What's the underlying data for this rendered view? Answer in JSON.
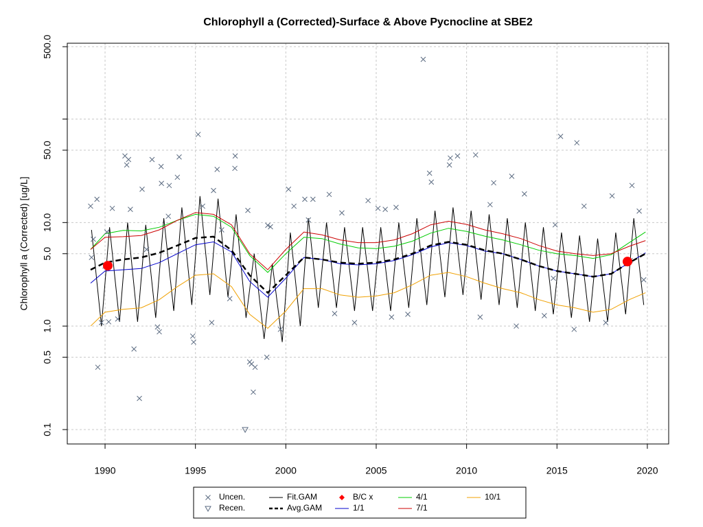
{
  "chart_data": {
    "type": "line",
    "title": "Chlorophyll a (Corrected)-Surface & Above Pycnocline at SBE2",
    "y_label": "Chlorophyll a (Corrected) [ug/L]",
    "log_y": true,
    "grid": true,
    "legend": "bottom",
    "xlim": [
      1987.91,
      2021.18
    ],
    "xticks": [
      1990,
      1995,
      2000,
      2005,
      2010,
      2015,
      2020
    ],
    "ylim": [
      0.0726,
      540
    ],
    "yticks": [
      0.1,
      0.5,
      {
        "value": 1,
        "label": "1.0"
      },
      {
        "value": 5,
        "label": "5.0"
      },
      {
        "value": 10,
        "label": "10.0"
      },
      {
        "value": 50,
        "label": "50.0"
      },
      {
        "value": 100,
        "label": null
      },
      {
        "value": 500,
        "label": "500.0"
      }
    ],
    "x": [
      1989.2,
      1990,
      1991,
      1992,
      1993,
      1994,
      1995,
      1996,
      1997,
      1998,
      1999,
      2000,
      2001,
      2002,
      2003,
      2004,
      2005,
      2006,
      2007,
      2008,
      2009,
      2010,
      2011,
      2012,
      2013,
      2014,
      2015,
      2016,
      2017,
      2018,
      2019,
      2019.9
    ],
    "series": [
      {
        "name": "Uncen.",
        "color": "#5a6a80",
        "kind": "points",
        "marker": "x",
        "x": [
          1989.2,
          1989.55,
          1989.35,
          1989.6,
          1989.25,
          1989.8,
          1990.0,
          1990.2,
          1990.1,
          1990.4,
          1990.7,
          1991.1,
          1991.3,
          1991.2,
          1991.4,
          1991.6,
          1991.9,
          1992.05,
          1992.3,
          1992.6,
          1992.9,
          1993.0,
          1993.1,
          1993.12,
          1993.55,
          1994.0,
          1994.1,
          1993.5,
          1995.15,
          1994.85,
          1994.9,
          1995.4,
          1995.9,
          1996.0,
          1996.2,
          1997.2,
          1997.18,
          1996.45,
          1996.9,
          1997.9,
          1998.0,
          1998.1,
          1998.3,
          1998.2,
          1998.95,
          1999.0,
          1999.15,
          1999.7,
          2000.15,
          2000.45,
          2001.05,
          2001.5,
          2001.25,
          2002.4,
          2003.1,
          2002.7,
          2003.8,
          2004.55,
          2005.1,
          2005.5,
          2006.1,
          2005.85,
          2006.75,
          2007.6,
          2007.95,
          2008.05,
          2009.05,
          2009.1,
          2009.5,
          2010.5,
          2010.75,
          2011.3,
          2011.5,
          2012.5,
          2012.75,
          2013.2,
          2014.3,
          2015.2,
          2014.8,
          2016.1,
          2015.95,
          2016.5,
          2017.7,
          2018.05,
          2019.15,
          2019.55,
          2019.05,
          2019.8,
          2014.9
        ],
        "values": [
          14.4,
          16.8,
          6.9,
          0.4,
          4.6,
          1.08,
          3.8,
          1.1,
          8.1,
          13.7,
          1.17,
          44,
          40.6,
          36,
          13.4,
          0.6,
          0.2,
          21,
          5.5,
          40.6,
          0.98,
          0.88,
          34.8,
          23.9,
          22.8,
          27.4,
          43,
          11.5,
          71,
          0.8,
          0.7,
          14.4,
          1.08,
          20.4,
          32.6,
          44,
          33.4,
          8.5,
          1.84,
          13.1,
          0.45,
          0.43,
          0.4,
          0.23,
          0.5,
          9.4,
          9.1,
          0.93,
          21,
          14.4,
          16.8,
          16.8,
          10.6,
          18.7,
          12.4,
          1.32,
          1.08,
          16.3,
          13.7,
          13.4,
          14,
          1.22,
          1.3,
          377,
          30,
          24.6,
          36,
          42,
          44,
          45,
          1.22,
          14.9,
          24.2,
          28,
          1.0,
          18.9,
          1.26,
          68,
          2.9,
          59,
          0.93,
          14.4,
          1.08,
          18.1,
          22.8,
          12.9,
          4.3,
          2.8,
          9.5
        ]
      },
      {
        "name": "Recen.",
        "color": "#5a6a80",
        "kind": "points",
        "marker": "triangle",
        "x": [
          1997.75
        ],
        "values": [
          0.1
        ]
      },
      {
        "name": "Fit.GAM",
        "color": "#000000",
        "kind": "line",
        "x": [
          1989.25,
          1989.8,
          1990.25,
          1990.8,
          1991.25,
          1991.8,
          1992.25,
          1992.8,
          1993.25,
          1993.8,
          1994.25,
          1994.8,
          1995.25,
          1995.8,
          1996.25,
          1996.8,
          1997.25,
          1997.8,
          1998.25,
          1998.8,
          1999.25,
          1999.8,
          2000.25,
          2000.8,
          2001.25,
          2001.8,
          2002.25,
          2002.8,
          2003.25,
          2003.8,
          2004.25,
          2004.8,
          2005.25,
          2005.8,
          2006.25,
          2006.8,
          2007.25,
          2007.8,
          2008.25,
          2008.8,
          2009.25,
          2009.8,
          2010.25,
          2010.8,
          2011.25,
          2011.8,
          2012.25,
          2012.8,
          2013.25,
          2013.8,
          2014.25,
          2014.8,
          2015.25,
          2015.8,
          2016.25,
          2016.8,
          2017.25,
          2017.8,
          2018.25,
          2018.8,
          2019.25,
          2019.8
        ],
        "values": [
          8.5,
          1.0,
          9,
          1.1,
          10,
          1.1,
          9.5,
          1.2,
          11,
          1.4,
          14,
          1.6,
          18,
          2.0,
          17,
          1.9,
          12,
          1.2,
          5,
          0.75,
          4,
          0.7,
          8,
          1.0,
          11,
          1.5,
          10,
          1.5,
          9,
          1.4,
          9,
          1.4,
          9,
          1.4,
          10,
          1.5,
          11,
          1.6,
          13,
          1.9,
          14,
          2.0,
          13,
          1.8,
          12,
          1.6,
          11,
          1.5,
          10,
          1.4,
          9,
          1.3,
          8,
          1.2,
          7.5,
          1.1,
          7,
          1.1,
          8,
          1.3,
          11,
          1.6
        ]
      },
      {
        "name": "Avg.GAM",
        "color": "#000000",
        "kind": "dashed",
        "values": [
          3.5,
          4.1,
          4.4,
          4.6,
          5.1,
          6.0,
          7.1,
          7.3,
          5.4,
          3.1,
          2.1,
          3.1,
          4.6,
          4.4,
          4.1,
          4.0,
          4.1,
          4.4,
          5.0,
          6.0,
          6.5,
          6.1,
          5.4,
          5.0,
          4.4,
          3.8,
          3.4,
          3.2,
          3.0,
          3.2,
          4.1,
          5.0
        ]
      },
      {
        "name": "B/C x",
        "color": "#ff0000",
        "kind": "points",
        "marker": "circle",
        "x": [
          1990.15,
          2018.9
        ],
        "values": [
          3.83,
          4.2
        ]
      },
      {
        "name": "1/1",
        "color": "#0000cc",
        "kind": "line",
        "values": [
          2.6,
          3.4,
          3.5,
          3.6,
          4.1,
          5.0,
          6.1,
          6.5,
          5.2,
          2.7,
          1.9,
          2.9,
          4.6,
          4.4,
          4.0,
          3.9,
          4.0,
          4.3,
          4.9,
          5.8,
          6.4,
          6.0,
          5.3,
          5.0,
          4.4,
          3.8,
          3.4,
          3.2,
          3.0,
          3.2,
          4.1,
          5.1
        ]
      },
      {
        "name": "4/1",
        "color": "#00cc00",
        "kind": "line",
        "values": [
          5.5,
          7.8,
          8.4,
          8.3,
          9.0,
          10.5,
          12.0,
          11.5,
          9.0,
          4.8,
          3.3,
          5.0,
          7.2,
          7.0,
          6.2,
          5.7,
          5.6,
          5.9,
          6.6,
          7.9,
          8.8,
          8.2,
          7.4,
          6.8,
          6.1,
          5.4,
          5.0,
          4.8,
          4.5,
          4.9,
          6.4,
          8.1
        ]
      },
      {
        "name": "7/1",
        "color": "#cc0000",
        "kind": "line",
        "values": [
          5.5,
          7.2,
          7.3,
          7.5,
          8.5,
          10.5,
          12.5,
          12.0,
          9.5,
          5.0,
          3.5,
          5.5,
          8.1,
          7.6,
          6.8,
          6.4,
          6.4,
          6.8,
          7.8,
          9.5,
          10.3,
          9.6,
          8.5,
          7.8,
          7.0,
          6.0,
          5.3,
          5.0,
          4.8,
          5.0,
          5.9,
          6.7
        ]
      },
      {
        "name": "10/1",
        "color": "#f0a000",
        "kind": "line",
        "values": [
          1.0,
          1.36,
          1.45,
          1.5,
          1.8,
          2.4,
          3.1,
          3.2,
          2.4,
          1.3,
          0.95,
          1.4,
          2.3,
          2.3,
          2.0,
          1.9,
          1.95,
          2.1,
          2.5,
          3.1,
          3.3,
          3.0,
          2.6,
          2.3,
          2.1,
          1.8,
          1.6,
          1.5,
          1.36,
          1.45,
          1.8,
          2.1
        ]
      }
    ]
  }
}
